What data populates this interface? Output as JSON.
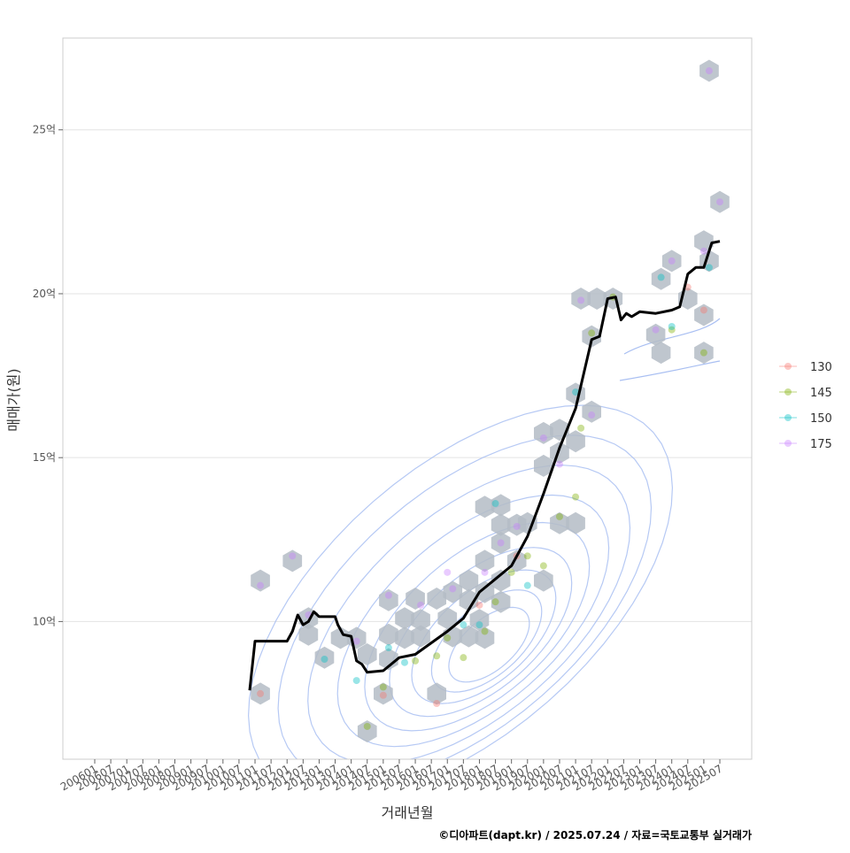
{
  "chart_data": {
    "type": "scatter",
    "xlabel": "거래년월",
    "ylabel": "매매가(원)",
    "caption": "©디아파트(dapt.kr) / 2025.07.24 / 자료=국토교통부 실거래가",
    "x_ticks": [
      "200601",
      "200607",
      "200701",
      "200707",
      "200801",
      "200807",
      "200901",
      "200907",
      "201001",
      "201007",
      "201101",
      "201107",
      "201201",
      "201207",
      "201301",
      "201307",
      "201401",
      "201407",
      "201501",
      "201507",
      "201601",
      "201607",
      "201701",
      "201707",
      "201801",
      "201807",
      "201901",
      "201907",
      "202001",
      "202007",
      "202101",
      "202107",
      "202201",
      "202207",
      "202301",
      "202307",
      "202401",
      "202407",
      "202501",
      "202507"
    ],
    "y_ticks": [
      {
        "value": 10,
        "label": "10억"
      },
      {
        "value": 15,
        "label": "15억"
      },
      {
        "value": 20,
        "label": "20억"
      },
      {
        "value": 25,
        "label": "25억"
      }
    ],
    "x_range": [
      "2006-01",
      "2025-07"
    ],
    "ylim": [
      5.8,
      27.8
    ],
    "grid": "horizontal",
    "legend_position": "right",
    "legend": [
      {
        "label": "130",
        "color": "#F8766D"
      },
      {
        "label": "145",
        "color": "#7CAE00"
      },
      {
        "label": "150",
        "color": "#00BFC4"
      },
      {
        "label": "175",
        "color": "#C77CFF"
      }
    ],
    "colors": {
      "line": "#000000",
      "hex": "#b4bcc5",
      "contour": "#a9bff2",
      "grid": "#e3e3e3",
      "frame": "#cccccc"
    },
    "median_line": [
      [
        "2010-11",
        7.9
      ],
      [
        "2011-01",
        9.4
      ],
      [
        "2011-03",
        9.4
      ],
      [
        "2012-01",
        9.4
      ],
      [
        "2012-03",
        9.7
      ],
      [
        "2012-05",
        10.2
      ],
      [
        "2012-07",
        9.9
      ],
      [
        "2012-09",
        10.0
      ],
      [
        "2012-11",
        10.3
      ],
      [
        "2013-01",
        10.15
      ],
      [
        "2013-04",
        10.15
      ],
      [
        "2013-07",
        10.15
      ],
      [
        "2013-08",
        9.9
      ],
      [
        "2013-10",
        9.6
      ],
      [
        "2014-01",
        9.55
      ],
      [
        "2014-03",
        8.8
      ],
      [
        "2014-05",
        8.7
      ],
      [
        "2014-07",
        8.45
      ],
      [
        "2015-01",
        8.5
      ],
      [
        "2015-07",
        8.9
      ],
      [
        "2016-01",
        9.0
      ],
      [
        "2016-07",
        9.35
      ],
      [
        "2017-01",
        9.7
      ],
      [
        "2017-07",
        10.1
      ],
      [
        "2018-01",
        10.9
      ],
      [
        "2018-07",
        11.3
      ],
      [
        "2019-01",
        11.7
      ],
      [
        "2019-07",
        12.6
      ],
      [
        "2020-01",
        13.9
      ],
      [
        "2020-07",
        15.3
      ],
      [
        "2021-01",
        16.5
      ],
      [
        "2021-07",
        18.6
      ],
      [
        "2021-10",
        18.7
      ],
      [
        "2022-01",
        19.85
      ],
      [
        "2022-04",
        19.9
      ],
      [
        "2022-06",
        19.2
      ],
      [
        "2022-08",
        19.4
      ],
      [
        "2022-10",
        19.3
      ],
      [
        "2023-01",
        19.45
      ],
      [
        "2023-07",
        19.4
      ],
      [
        "2024-01",
        19.5
      ],
      [
        "2024-04",
        19.6
      ],
      [
        "2024-07",
        20.6
      ],
      [
        "2024-10",
        20.8
      ],
      [
        "2025-01",
        20.8
      ],
      [
        "2025-04",
        21.55
      ],
      [
        "2025-07",
        21.6
      ]
    ],
    "hexbins": [
      [
        "2011-03",
        11.25
      ],
      [
        "2011-03",
        7.8
      ],
      [
        "2012-03",
        11.85
      ],
      [
        "2012-09",
        10.1
      ],
      [
        "2012-09",
        9.6
      ],
      [
        "2013-03",
        8.9
      ],
      [
        "2013-09",
        9.5
      ],
      [
        "2014-03",
        9.5
      ],
      [
        "2014-07",
        9.0
      ],
      [
        "2014-07",
        6.65
      ],
      [
        "2015-01",
        7.8
      ],
      [
        "2015-03",
        10.65
      ],
      [
        "2015-03",
        9.6
      ],
      [
        "2015-03",
        8.85
      ],
      [
        "2015-09",
        10.1
      ],
      [
        "2015-09",
        9.5
      ],
      [
        "2016-01",
        10.7
      ],
      [
        "2016-03",
        10.05
      ],
      [
        "2016-03",
        9.55
      ],
      [
        "2016-09",
        10.7
      ],
      [
        "2016-09",
        7.8
      ],
      [
        "2017-01",
        10.1
      ],
      [
        "2017-03",
        10.9
      ],
      [
        "2017-03",
        9.55
      ],
      [
        "2017-09",
        11.25
      ],
      [
        "2017-09",
        10.65
      ],
      [
        "2017-09",
        9.55
      ],
      [
        "2018-01",
        10.05
      ],
      [
        "2018-03",
        11.85
      ],
      [
        "2018-03",
        13.5
      ],
      [
        "2018-03",
        10.9
      ],
      [
        "2018-03",
        9.5
      ],
      [
        "2018-09",
        13.55
      ],
      [
        "2018-09",
        12.95
      ],
      [
        "2018-09",
        12.4
      ],
      [
        "2018-09",
        11.25
      ],
      [
        "2018-09",
        10.6
      ],
      [
        "2019-03",
        12.95
      ],
      [
        "2019-03",
        11.85
      ],
      [
        "2019-07",
        13.0
      ],
      [
        "2020-01",
        15.75
      ],
      [
        "2020-01",
        14.75
      ],
      [
        "2020-01",
        11.25
      ],
      [
        "2020-07",
        15.85
      ],
      [
        "2020-07",
        15.15
      ],
      [
        "2020-07",
        13.0
      ],
      [
        "2021-01",
        16.95
      ],
      [
        "2021-01",
        15.5
      ],
      [
        "2021-01",
        13.0
      ],
      [
        "2021-03",
        19.85
      ],
      [
        "2021-07",
        16.4
      ],
      [
        "2021-07",
        18.7
      ],
      [
        "2021-09",
        19.85
      ],
      [
        "2022-03",
        19.85
      ],
      [
        "2023-07",
        18.75
      ],
      [
        "2023-09",
        20.45
      ],
      [
        "2023-09",
        18.2
      ],
      [
        "2024-01",
        21.0
      ],
      [
        "2024-07",
        19.85
      ],
      [
        "2025-01",
        21.6
      ],
      [
        "2025-01",
        19.35
      ],
      [
        "2025-01",
        18.2
      ],
      [
        "2025-03",
        26.8
      ],
      [
        "2025-03",
        21.0
      ],
      [
        "2025-07",
        22.8
      ]
    ],
    "points": [
      {
        "series": "130",
        "x": "2011-03",
        "y": 7.8
      },
      {
        "series": "130",
        "x": "2015-01",
        "y": 7.75
      },
      {
        "series": "130",
        "x": "2016-09",
        "y": 7.5
      },
      {
        "series": "130",
        "x": "2018-01",
        "y": 10.5
      },
      {
        "series": "130",
        "x": "2019-03",
        "y": 12.0
      },
      {
        "series": "130",
        "x": "2025-01",
        "y": 19.5
      },
      {
        "series": "130",
        "x": "2024-07",
        "y": 20.2
      },
      {
        "series": "145",
        "x": "2014-07",
        "y": 6.8
      },
      {
        "series": "145",
        "x": "2015-01",
        "y": 8.0
      },
      {
        "series": "145",
        "x": "2016-01",
        "y": 8.8
      },
      {
        "series": "145",
        "x": "2016-09",
        "y": 8.95
      },
      {
        "series": "145",
        "x": "2017-01",
        "y": 9.5
      },
      {
        "series": "145",
        "x": "2017-07",
        "y": 8.9
      },
      {
        "series": "145",
        "x": "2018-03",
        "y": 9.7
      },
      {
        "series": "145",
        "x": "2018-07",
        "y": 10.6
      },
      {
        "series": "145",
        "x": "2019-01",
        "y": 11.5
      },
      {
        "series": "145",
        "x": "2019-07",
        "y": 12.0
      },
      {
        "series": "145",
        "x": "2020-01",
        "y": 11.7
      },
      {
        "series": "145",
        "x": "2020-07",
        "y": 13.2
      },
      {
        "series": "145",
        "x": "2021-01",
        "y": 13.8
      },
      {
        "series": "145",
        "x": "2021-03",
        "y": 15.9
      },
      {
        "series": "145",
        "x": "2021-07",
        "y": 18.8
      },
      {
        "series": "145",
        "x": "2022-03",
        "y": 19.9
      },
      {
        "series": "145",
        "x": "2024-01",
        "y": 18.9
      },
      {
        "series": "145",
        "x": "2025-01",
        "y": 18.2
      },
      {
        "series": "150",
        "x": "2013-03",
        "y": 8.85
      },
      {
        "series": "150",
        "x": "2014-03",
        "y": 8.2
      },
      {
        "series": "150",
        "x": "2015-03",
        "y": 9.2
      },
      {
        "series": "150",
        "x": "2015-09",
        "y": 8.75
      },
      {
        "series": "150",
        "x": "2017-07",
        "y": 9.9
      },
      {
        "series": "150",
        "x": "2018-01",
        "y": 9.9
      },
      {
        "series": "150",
        "x": "2018-07",
        "y": 13.6
      },
      {
        "series": "150",
        "x": "2019-07",
        "y": 11.1
      },
      {
        "series": "150",
        "x": "2021-01",
        "y": 17.0
      },
      {
        "series": "150",
        "x": "2023-09",
        "y": 20.5
      },
      {
        "series": "150",
        "x": "2024-01",
        "y": 19.0
      },
      {
        "series": "150",
        "x": "2025-03",
        "y": 20.8
      },
      {
        "series": "175",
        "x": "2011-03",
        "y": 11.1
      },
      {
        "series": "175",
        "x": "2012-03",
        "y": 12.0
      },
      {
        "series": "175",
        "x": "2012-09",
        "y": 10.2
      },
      {
        "series": "175",
        "x": "2014-03",
        "y": 9.4
      },
      {
        "series": "175",
        "x": "2015-03",
        "y": 10.8
      },
      {
        "series": "175",
        "x": "2016-03",
        "y": 10.5
      },
      {
        "series": "175",
        "x": "2017-01",
        "y": 11.5
      },
      {
        "series": "175",
        "x": "2017-03",
        "y": 11.0
      },
      {
        "series": "175",
        "x": "2018-03",
        "y": 11.5
      },
      {
        "series": "175",
        "x": "2018-09",
        "y": 12.4
      },
      {
        "series": "175",
        "x": "2019-03",
        "y": 12.9
      },
      {
        "series": "175",
        "x": "2020-01",
        "y": 15.6
      },
      {
        "series": "175",
        "x": "2020-07",
        "y": 14.8
      },
      {
        "series": "175",
        "x": "2021-03",
        "y": 19.8
      },
      {
        "series": "175",
        "x": "2021-07",
        "y": 16.3
      },
      {
        "series": "175",
        "x": "2023-07",
        "y": 18.9
      },
      {
        "series": "175",
        "x": "2024-01",
        "y": 21.0
      },
      {
        "series": "175",
        "x": "2025-01",
        "y": 21.3
      },
      {
        "series": "175",
        "x": "2025-03",
        "y": 26.8
      },
      {
        "series": "175",
        "x": "2025-07",
        "y": 22.8
      }
    ]
  }
}
